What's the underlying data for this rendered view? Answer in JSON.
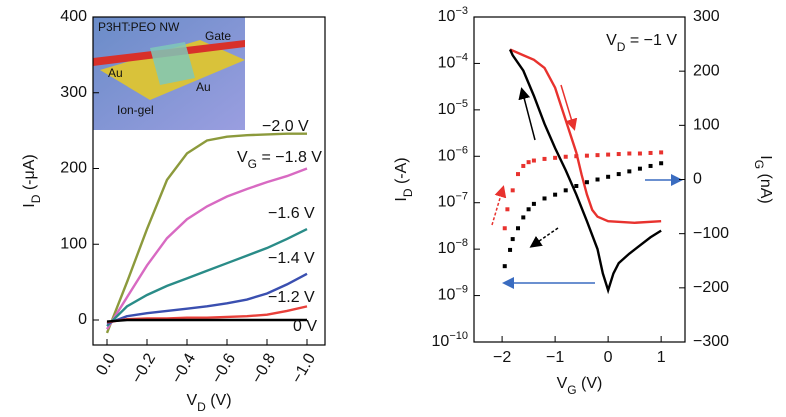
{
  "chart_data": [
    {
      "type": "line",
      "xlabel": {
        "text": "V",
        "sub": "D",
        "rest": " (V)"
      },
      "ylabel": {
        "text": "I",
        "sub": "D",
        "rest": " (-μA)"
      },
      "xlim": [
        0.07,
        -1.09
      ],
      "ylim": [
        -33,
        400
      ],
      "xticks": [
        {
          "value": 0,
          "label": "0.0"
        },
        {
          "value": -0.2,
          "label": "−0.2"
        },
        {
          "value": -0.4,
          "label": "−0.4"
        },
        {
          "value": -0.6,
          "label": "−0.6"
        },
        {
          "value": -0.8,
          "label": "−0.8"
        },
        {
          "value": -1,
          "label": "−1.0"
        }
      ],
      "yticks": [
        0,
        100,
        200,
        300,
        400
      ],
      "x": [
        0,
        -0.1,
        -0.2,
        -0.3,
        -0.4,
        -0.5,
        -0.6,
        -0.7,
        -0.8,
        -0.9,
        -1.0
      ],
      "series": [
        {
          "name": "−2.0 V",
          "color": "#8c9a3c",
          "values": [
            -17,
            50,
            120,
            185,
            220,
            237,
            242,
            244,
            245,
            246,
            246
          ]
        },
        {
          "name": "−1.8 V",
          "color": "#d86ac2",
          "values": [
            -12,
            30,
            72,
            108,
            133,
            150,
            163,
            173,
            182,
            190,
            200
          ]
        },
        {
          "name": "−1.6 V",
          "color": "#2a8c88",
          "values": [
            -8,
            18,
            33,
            45,
            55,
            65,
            75,
            85,
            95,
            107,
            120
          ]
        },
        {
          "name": "−1.4 V",
          "color": "#3a4fb0",
          "values": [
            -5,
            5,
            9,
            12,
            15,
            18,
            22,
            27,
            35,
            47,
            61
          ]
        },
        {
          "name": "−1.2 V",
          "color": "#e8403a",
          "values": [
            -3,
            1,
            2,
            2,
            3,
            3,
            4,
            5,
            7,
            12,
            18
          ]
        },
        {
          "name": "0 V",
          "color": "#000000",
          "values": [
            -2,
            0,
            0,
            0,
            0,
            0,
            0,
            0,
            0,
            0,
            0
          ]
        }
      ],
      "vg_prefix": {
        "text": "V",
        "sub": "G",
        "rest": " = "
      },
      "inset_labels": [
        "P3HT:PEO NW",
        "Gate",
        "Au",
        "Au",
        "Ion-gel"
      ]
    },
    {
      "type": "line",
      "xlabel": {
        "text": "V",
        "sub": "G",
        "rest": " (V)"
      },
      "ylabel": {
        "text": "I",
        "sub": "D",
        "rest": " (-A)"
      },
      "y2label": {
        "text": "I",
        "sub": "G",
        "rest": " (nA)"
      },
      "annotation": {
        "text": "V",
        "sub": "D",
        "rest": " = −1 V"
      },
      "xlim": [
        -2.53,
        1.45
      ],
      "ylim": [
        1e-10,
        0.001
      ],
      "ylog": true,
      "y2lim": [
        -300,
        300
      ],
      "xticks": [
        {
          "value": -2,
          "label": "−2"
        },
        {
          "value": -1,
          "label": "−1"
        },
        0,
        1
      ],
      "yticks": [
        {
          "value": 1e-10,
          "label": "10",
          "sup": "−10"
        },
        {
          "value": 1e-09,
          "label": "10",
          "sup": "−9"
        },
        {
          "value": 1e-08,
          "label": "10",
          "sup": "−8"
        },
        {
          "value": 1e-07,
          "label": "10",
          "sup": "−7"
        },
        {
          "value": 1e-06,
          "label": "10",
          "sup": "−6"
        },
        {
          "value": 1e-05,
          "label": "10",
          "sup": "−5"
        },
        {
          "value": 0.0001,
          "label": "10",
          "sup": "−4"
        },
        {
          "value": 0.001,
          "label": "10",
          "sup": "−3"
        }
      ],
      "y2ticks": [
        {
          "value": -300,
          "label": "−300"
        },
        {
          "value": -200,
          "label": "−200"
        },
        {
          "value": -100,
          "label": "−100"
        },
        0,
        100,
        200,
        300
      ],
      "series": [
        {
          "color": "#e8322e",
          "x": [
            -1.85,
            -1.6,
            -1.4,
            -1.2,
            -1.0,
            -0.8,
            -0.6,
            -0.5,
            -0.4,
            -0.3,
            -0.2,
            0,
            0.5,
            1.0
          ],
          "values": [
            0.0002,
            0.00015,
            0.00012,
            8e-05,
            3e-05,
            6e-06,
            1.2e-06,
            4e-07,
            1.5e-07,
            7e-08,
            5e-08,
            4e-08,
            3.7e-08,
            4e-08
          ]
        },
        {
          "color": "#000000",
          "x": [
            -1.85,
            -1.8,
            -1.6,
            -1.4,
            -1.2,
            -1.0,
            -0.8,
            -0.6,
            -0.4,
            -0.2,
            -0.1,
            0,
            0.1,
            0.2,
            0.4,
            0.6,
            0.8,
            1.0
          ],
          "values": [
            0.0002,
            0.00015,
            7e-05,
            2e-05,
            5e-06,
            1.5e-06,
            5e-07,
            1.5e-07,
            4e-08,
            1e-08,
            3e-09,
            1.3e-09,
            3e-09,
            5e-09,
            8e-09,
            1.2e-08,
            1.8e-08,
            2.5e-08
          ]
        },
        {
          "color": "#e8322e",
          "style": "dotted",
          "axis": "y2",
          "x": [
            -1.95,
            -1.9,
            -1.8,
            -1.7,
            -1.6,
            -1.5,
            -1.4,
            -1.2,
            -1.0,
            -0.8,
            -0.6,
            -0.4,
            -0.2,
            0,
            0.2,
            0.4,
            0.6,
            0.8,
            1.0
          ],
          "values": [
            -90,
            -55,
            -20,
            10,
            25,
            32,
            35,
            38,
            40,
            42,
            43,
            44,
            45,
            46,
            47,
            48,
            48,
            49,
            50
          ]
        },
        {
          "color": "#000000",
          "style": "dotted",
          "axis": "y2",
          "x": [
            -1.95,
            -1.85,
            -1.8,
            -1.7,
            -1.6,
            -1.5,
            -1.4,
            -1.2,
            -1.0,
            -0.8,
            -0.6,
            -0.4,
            -0.2,
            0,
            0.2,
            0.4,
            0.6,
            0.8,
            1.0
          ],
          "values": [
            -160,
            -130,
            -110,
            -90,
            -70,
            -55,
            -45,
            -35,
            -28,
            -20,
            -12,
            -5,
            0,
            5,
            10,
            15,
            20,
            25,
            30
          ]
        }
      ]
    }
  ]
}
